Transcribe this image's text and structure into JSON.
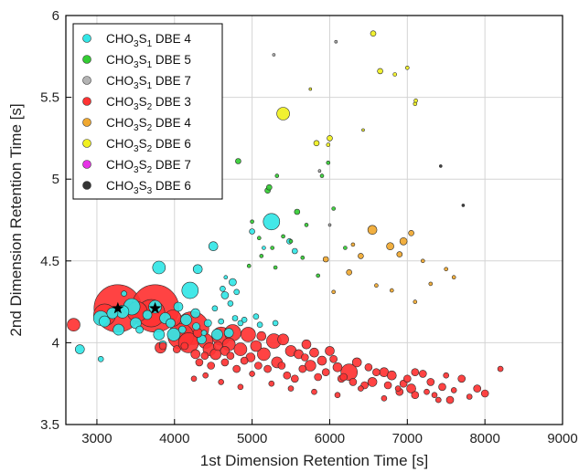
{
  "chart_data": {
    "type": "scatter",
    "title": "",
    "xlabel": "1st Dimension Retention Time [s]",
    "ylabel": "2nd Dimension Retention Time [s]",
    "xlim": [
      2600,
      9000
    ],
    "ylim": [
      3.5,
      6
    ],
    "xticks": [
      "3000",
      "4000",
      "5000",
      "6000",
      "7000",
      "8000",
      "9000"
    ],
    "yticks": [
      "3.5",
      "4",
      "4.5",
      "5",
      "5.5",
      "6"
    ],
    "grid": true,
    "legend_position": "top-left",
    "legend": [
      {
        "main": "CHO",
        "s1": "3",
        "mid": "S",
        "s2": "1",
        "dbe": " DBE 4",
        "color": "#33e6e6"
      },
      {
        "main": "CHO",
        "s1": "3",
        "mid": "S",
        "s2": "1",
        "dbe": " DBE 5",
        "color": "#33cc33"
      },
      {
        "main": "CHO",
        "s1": "3",
        "mid": "S",
        "s2": "1",
        "dbe": " DBE 7",
        "color": "#b3b3b3"
      },
      {
        "main": "CHO",
        "s1": "3",
        "mid": "S",
        "s2": "2",
        "dbe": " DBE 3",
        "color": "#ff3333"
      },
      {
        "main": "CHO",
        "s1": "3",
        "mid": "S",
        "s2": "2",
        "dbe": " DBE 4",
        "color": "#f0a830"
      },
      {
        "main": "CHO",
        "s1": "3",
        "mid": "S",
        "s2": "2",
        "dbe": " DBE 6",
        "color": "#f0f020"
      },
      {
        "main": "CHO",
        "s1": "3",
        "mid": "S",
        "s2": "2",
        "dbe": " DBE 7",
        "color": "#e633e6"
      },
      {
        "main": "CHO",
        "s1": "3",
        "mid": "S",
        "s2": "3",
        "dbe": " DBE 6",
        "color": "#333333"
      }
    ],
    "series": [
      {
        "name": "CHO3S1 DBE 4",
        "color": "#33e6e6",
        "points": [
          [
            3050,
            4.15,
            8
          ],
          [
            3100,
            4.13,
            6
          ],
          [
            3200,
            4.18,
            6
          ],
          [
            3280,
            4.08,
            6
          ],
          [
            3330,
            4.19,
            7
          ],
          [
            3450,
            4.22,
            9
          ],
          [
            3500,
            4.12,
            6
          ],
          [
            3650,
            4.17,
            5
          ],
          [
            3750,
            4.22,
            7
          ],
          [
            3800,
            4.05,
            6
          ],
          [
            3800,
            4.46,
            7
          ],
          [
            3880,
            4.15,
            6
          ],
          [
            3950,
            4.12,
            5
          ],
          [
            3990,
            4.05,
            7
          ],
          [
            4050,
            4.22,
            5
          ],
          [
            4150,
            4.14,
            6
          ],
          [
            4200,
            4.32,
            9
          ],
          [
            4270,
            4.18,
            5
          ],
          [
            4300,
            4.45,
            5
          ],
          [
            4350,
            4.02,
            5
          ],
          [
            4430,
            4.12,
            4
          ],
          [
            4500,
            4.59,
            5
          ],
          [
            4550,
            4.05,
            6
          ],
          [
            4600,
            4.13,
            3
          ],
          [
            4650,
            4.29,
            4
          ],
          [
            4700,
            4.06,
            5
          ],
          [
            4750,
            4.37,
            4
          ],
          [
            4800,
            4.31,
            3
          ],
          [
            4850,
            4.12,
            3
          ],
          [
            4900,
            4.14,
            3
          ],
          [
            5000,
            4.68,
            3
          ],
          [
            5050,
            4.16,
            3
          ],
          [
            5100,
            4.11,
            3
          ],
          [
            5250,
            4.74,
            9
          ],
          [
            5300,
            4.12,
            3
          ],
          [
            5480,
            4.62,
            3
          ],
          [
            5550,
            4.56,
            3
          ],
          [
            2780,
            3.96,
            5
          ],
          [
            3050,
            3.9,
            3
          ],
          [
            3350,
            4.3,
            3
          ],
          [
            3550,
            4.08,
            4
          ],
          [
            3850,
            3.99,
            4
          ],
          [
            4100,
            4.08,
            4
          ],
          [
            4280,
            4.1,
            4
          ],
          [
            4380,
            4.06,
            3
          ],
          [
            4520,
            4.21,
            3
          ],
          [
            4620,
            4.33,
            3
          ],
          [
            4720,
            4.24,
            3
          ],
          [
            4780,
            4.15,
            3
          ],
          [
            5150,
            4.58,
            2
          ],
          [
            4660,
            4.4,
            2
          ]
        ]
      },
      {
        "name": "CHO3S1 DBE 5",
        "color": "#33cc33",
        "points": [
          [
            4820,
            5.11,
            3
          ],
          [
            5200,
            4.93,
            3
          ],
          [
            5220,
            4.95,
            3
          ],
          [
            5000,
            4.74,
            2
          ],
          [
            5090,
            4.64,
            2
          ],
          [
            5260,
            4.58,
            2
          ],
          [
            5300,
            4.46,
            2
          ],
          [
            5500,
            4.62,
            2
          ],
          [
            5580,
            4.8,
            3
          ],
          [
            5650,
            4.52,
            2
          ],
          [
            5900,
            5.02,
            2
          ],
          [
            5980,
            5.1,
            2
          ],
          [
            6050,
            4.82,
            2
          ],
          [
            6200,
            4.58,
            2
          ],
          [
            5400,
            4.65,
            2
          ],
          [
            5700,
            4.72,
            2
          ],
          [
            5320,
            5.02,
            2
          ],
          [
            4960,
            4.47,
            2
          ],
          [
            5120,
            4.53,
            2
          ],
          [
            5850,
            4.41,
            2
          ]
        ]
      },
      {
        "name": "CHO3S1 DBE 7",
        "color": "#b3b3b3",
        "points": [
          [
            6080,
            5.84,
            1.5
          ],
          [
            5280,
            5.76,
            1.5
          ],
          [
            5870,
            5.05,
            1.5
          ],
          [
            6000,
            4.72,
            1.5
          ]
        ]
      },
      {
        "name": "CHO3S2 DBE 3",
        "color": "#ff3333",
        "points": [
          [
            2700,
            4.11,
            7
          ],
          [
            3100,
            4.17,
            12
          ],
          [
            3270,
            4.21,
            26
          ],
          [
            3520,
            4.19,
            11
          ],
          [
            3750,
            4.21,
            26
          ],
          [
            3700,
            4.18,
            15
          ],
          [
            3820,
            3.97,
            6
          ],
          [
            3980,
            4.15,
            9
          ],
          [
            4080,
            4.04,
            14
          ],
          [
            4230,
            4.09,
            18
          ],
          [
            4180,
            4.0,
            11
          ],
          [
            4400,
            4.01,
            8
          ],
          [
            4450,
            3.96,
            7
          ],
          [
            4600,
            4.04,
            10
          ],
          [
            4530,
            3.93,
            6
          ],
          [
            4700,
            3.99,
            7
          ],
          [
            4750,
            4.06,
            9
          ],
          [
            4850,
            3.96,
            7
          ],
          [
            4950,
            4.05,
            8
          ],
          [
            5050,
            3.98,
            6
          ],
          [
            5150,
            3.93,
            7
          ],
          [
            5280,
            4.01,
            8
          ],
          [
            5320,
            3.88,
            6
          ],
          [
            5400,
            4.02,
            6
          ],
          [
            5500,
            3.95,
            6
          ],
          [
            5600,
            3.93,
            5
          ],
          [
            5700,
            3.99,
            5
          ],
          [
            5750,
            3.86,
            6
          ],
          [
            5800,
            3.94,
            5
          ],
          [
            5900,
            3.89,
            5
          ],
          [
            6000,
            3.95,
            5
          ],
          [
            6100,
            3.85,
            5
          ],
          [
            6250,
            3.82,
            9
          ],
          [
            6350,
            3.88,
            5
          ],
          [
            6500,
            3.85,
            4
          ],
          [
            6550,
            3.76,
            5
          ],
          [
            6700,
            3.82,
            5
          ],
          [
            6800,
            3.8,
            5
          ],
          [
            6950,
            3.75,
            4
          ],
          [
            7050,
            3.72,
            5
          ],
          [
            7200,
            3.81,
            4
          ],
          [
            7300,
            3.76,
            4
          ],
          [
            7450,
            3.73,
            4
          ],
          [
            7550,
            3.65,
            4
          ],
          [
            7700,
            3.78,
            4
          ],
          [
            7900,
            3.72,
            4
          ],
          [
            8000,
            3.69,
            4
          ],
          [
            8200,
            3.84,
            3
          ],
          [
            4270,
            3.93,
            5
          ],
          [
            4320,
            3.88,
            4
          ],
          [
            4390,
            3.92,
            4
          ],
          [
            4470,
            3.86,
            4
          ],
          [
            4560,
            3.98,
            5
          ],
          [
            4650,
            3.88,
            4
          ],
          [
            4720,
            3.92,
            4
          ],
          [
            4800,
            3.84,
            4
          ],
          [
            4900,
            3.89,
            4
          ],
          [
            4980,
            3.91,
            5
          ],
          [
            5080,
            3.86,
            4
          ],
          [
            5200,
            3.84,
            4
          ],
          [
            5380,
            3.86,
            4
          ],
          [
            5450,
            3.8,
            4
          ],
          [
            5550,
            3.78,
            4
          ],
          [
            5650,
            3.84,
            4
          ],
          [
            5850,
            3.79,
            4
          ],
          [
            5950,
            3.82,
            4
          ],
          [
            6050,
            3.9,
            4
          ],
          [
            6150,
            3.78,
            4
          ],
          [
            6300,
            3.76,
            4
          ],
          [
            6450,
            3.74,
            4
          ],
          [
            6600,
            3.82,
            4
          ],
          [
            6750,
            3.74,
            4
          ],
          [
            6900,
            3.7,
            4
          ],
          [
            7000,
            3.78,
            4
          ],
          [
            7100,
            3.68,
            4
          ],
          [
            7250,
            3.7,
            3
          ],
          [
            7400,
            3.65,
            3
          ],
          [
            7600,
            3.71,
            3
          ],
          [
            7800,
            3.67,
            3
          ],
          [
            7100,
            3.82,
            4
          ],
          [
            7500,
            3.8,
            3
          ],
          [
            4250,
            3.78,
            3
          ],
          [
            4400,
            3.8,
            3
          ],
          [
            4600,
            3.76,
            3
          ],
          [
            4850,
            3.73,
            3
          ],
          [
            5000,
            3.81,
            3
          ],
          [
            5250,
            3.75,
            3
          ],
          [
            5500,
            3.72,
            3
          ],
          [
            5800,
            3.7,
            3
          ],
          [
            6100,
            3.68,
            3
          ],
          [
            6400,
            3.72,
            3
          ],
          [
            6700,
            3.66,
            3
          ],
          [
            3850,
            3.98,
            4
          ],
          [
            4030,
            3.96,
            4
          ],
          [
            4130,
            3.98,
            4
          ],
          [
            4300,
            4.06,
            5
          ],
          [
            4650,
            3.95,
            5
          ],
          [
            5120,
            4.04,
            5
          ],
          [
            5680,
            3.91,
            4
          ],
          [
            6180,
            3.79,
            4
          ],
          [
            6880,
            3.72,
            3
          ],
          [
            7350,
            3.68,
            3
          ]
        ]
      },
      {
        "name": "CHO3S2 DBE 4",
        "color": "#f0a830",
        "points": [
          [
            6550,
            4.69,
            5
          ],
          [
            6780,
            4.59,
            4
          ],
          [
            6950,
            4.62,
            4
          ],
          [
            7050,
            4.67,
            3
          ],
          [
            6900,
            4.54,
            3
          ],
          [
            5950,
            4.51,
            3
          ],
          [
            6250,
            4.43,
            3
          ],
          [
            6400,
            4.53,
            3
          ],
          [
            7100,
            4.25,
            2
          ],
          [
            7300,
            4.36,
            2
          ],
          [
            7500,
            4.45,
            2
          ],
          [
            7600,
            4.4,
            2
          ],
          [
            6050,
            4.31,
            2
          ],
          [
            6600,
            4.35,
            2
          ],
          [
            6800,
            4.32,
            2
          ],
          [
            7200,
            4.5,
            2
          ],
          [
            6300,
            4.6,
            2
          ]
        ]
      },
      {
        "name": "CHO3S2 DBE 6",
        "color": "#f0f020",
        "points": [
          [
            5400,
            5.4,
            7
          ],
          [
            6650,
            5.66,
            3
          ],
          [
            6560,
            5.89,
            3
          ],
          [
            5830,
            5.22,
            3
          ],
          [
            6000,
            5.25,
            3
          ],
          [
            5980,
            5.21,
            2
          ],
          [
            7100,
            5.46,
            2
          ],
          [
            7110,
            5.48,
            2
          ],
          [
            6840,
            5.64,
            2
          ],
          [
            7000,
            5.68,
            2
          ],
          [
            5750,
            5.55,
            1.5
          ],
          [
            6430,
            5.3,
            1.5
          ]
        ]
      },
      {
        "name": "CHO3S2 DBE 7",
        "color": "#e633e6",
        "points": []
      },
      {
        "name": "CHO3S3 DBE 6",
        "color": "#333333",
        "points": [
          [
            7430,
            5.08,
            1.5
          ],
          [
            7720,
            4.84,
            1.5
          ]
        ]
      }
    ],
    "stars": [
      [
        3270,
        4.21
      ],
      [
        3750,
        4.21
      ]
    ]
  }
}
